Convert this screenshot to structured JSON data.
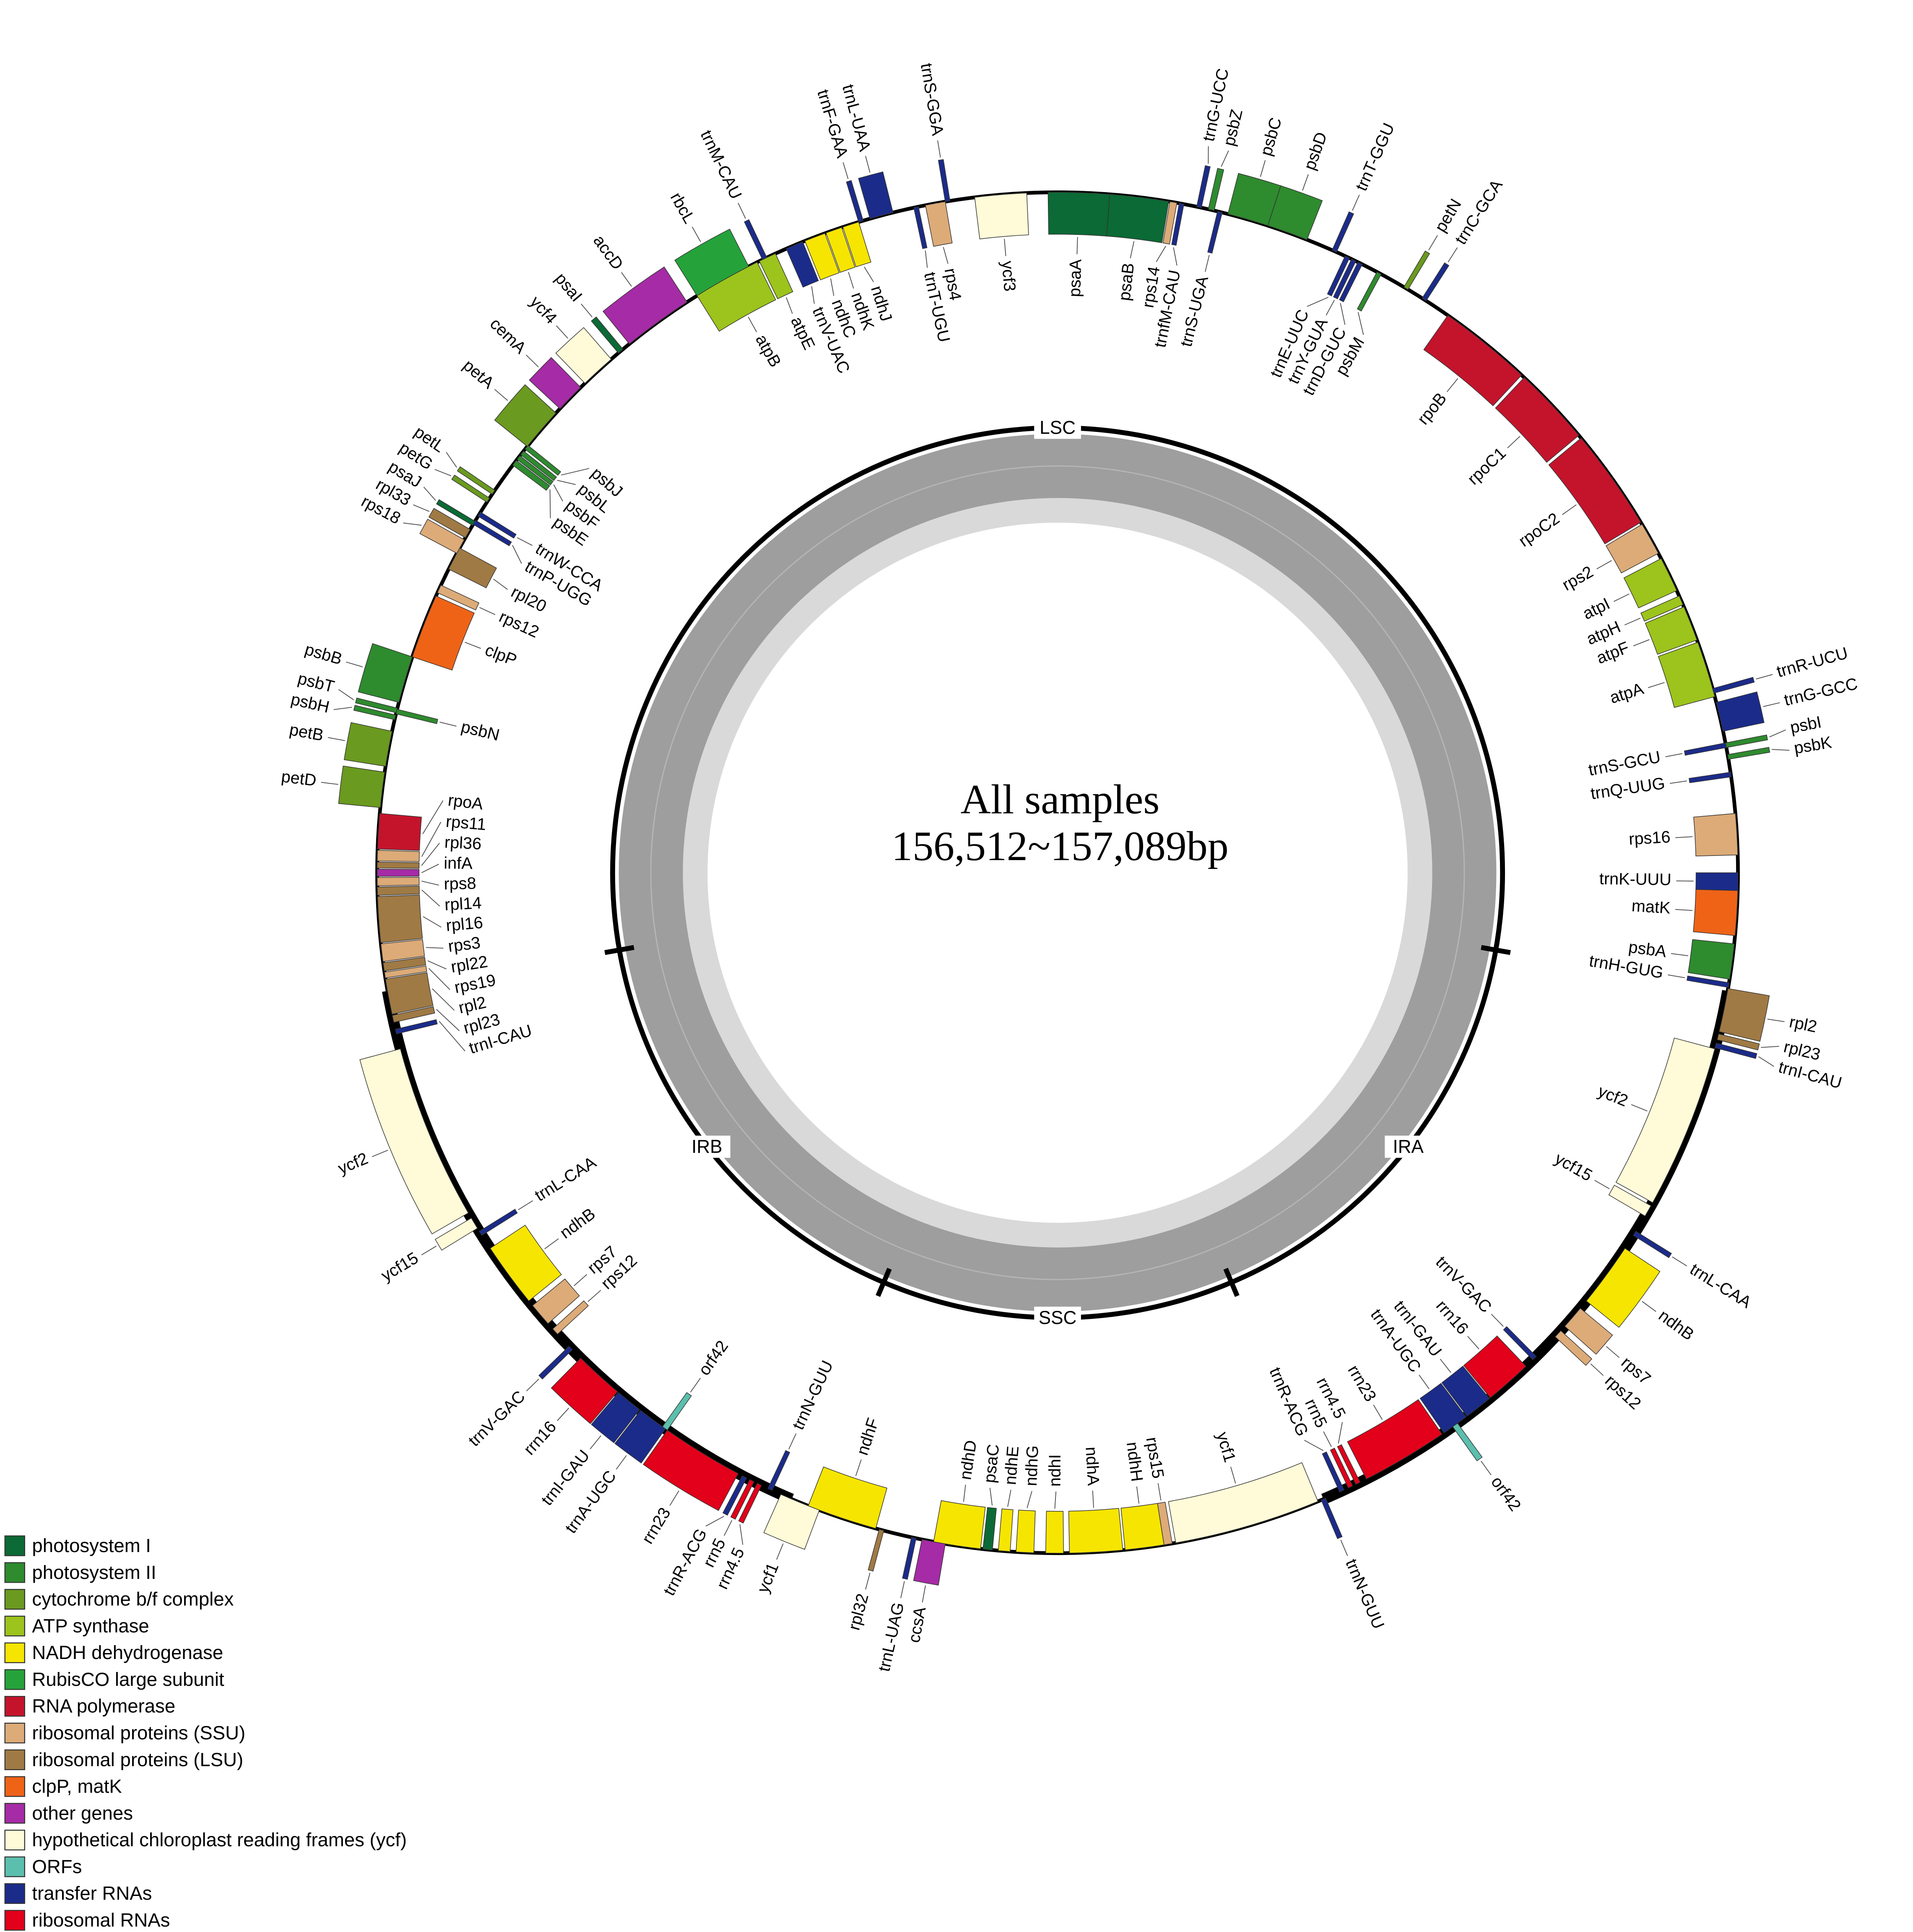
{
  "center_label": {
    "title": "All samples",
    "size": "156,512~157,089bp"
  },
  "regions": [
    "LSC",
    "IRA",
    "SSC",
    "IRB"
  ],
  "genes": [
    "ycf3",
    "psaA",
    "psaB",
    "rps14",
    "trnfM-CAU",
    "trnG-UCC",
    "psbZ",
    "trnS-UGA",
    "psbC",
    "psbD",
    "trnT-GGU",
    "trnE-UUC",
    "trnY-GUA",
    "trnD-GUC",
    "psbM",
    "petN",
    "trnC-GCA",
    "rpoB",
    "rpoC1",
    "rpoC2",
    "rps2",
    "atpI",
    "atpH",
    "atpF",
    "atpA",
    "trnR-UCU",
    "trnG-GCC",
    "psbI",
    "psbK",
    "trnS-GCU",
    "trnQ-UUG",
    "rps16",
    "trnK-UUU",
    "matK",
    "psbA",
    "trnH-GUG",
    "rpl2",
    "rpl23",
    "trnI-CAU",
    "ycf2",
    "ycf15",
    "trnL-CAA",
    "ndhB",
    "rps7",
    "rps12",
    "trnV-GAC",
    "rrn16",
    "trnI-GAU",
    "trnA-UGC",
    "orf42",
    "rrn23",
    "rrn4.5",
    "rrn5",
    "trnR-ACG",
    "trnN-GUU",
    "ycf1",
    "rps15",
    "ndhH",
    "ndhA",
    "ndhI",
    "ndhG",
    "ndhE",
    "psaC",
    "ndhD",
    "ccsA",
    "trnL-UAG",
    "rpl32",
    "ndhF",
    "ycf1",
    "trnN-GUU",
    "rrn4.5",
    "rrn5",
    "trnR-ACG",
    "rrn23",
    "trnA-UGC",
    "trnI-GAU",
    "orf42",
    "rrn16",
    "trnV-GAC",
    "rps12",
    "rps7",
    "ndhB",
    "trnL-CAA",
    "ycf15",
    "ycf2",
    "trnI-CAU",
    "rpl23",
    "rpl2",
    "rps19",
    "rpl22",
    "rps3",
    "rpl16",
    "rpl14",
    "rps8",
    "infA",
    "rpl36",
    "rps11",
    "rpoA",
    "petD",
    "petB",
    "psbH",
    "psbT",
    "psbN",
    "psbB",
    "clpP",
    "rps12",
    "rpl20",
    "rps18",
    "rpl33",
    "psaJ",
    "trnP-UGG",
    "trnW-CCA",
    "petG",
    "petL",
    "psbE",
    "psbF",
    "psbL",
    "psbJ",
    "petA",
    "cemA",
    "ycf4",
    "psaI",
    "accD",
    "rbcL",
    "atpB",
    "atpE",
    "trnM-CAU",
    "trnV-UAC",
    "ndhC",
    "ndhK",
    "ndhJ",
    "trnF-GAA",
    "trnL-UAA",
    "trnT-UGU",
    "rps4",
    "trnS-GGA"
  ],
  "legend": [
    {
      "label": "photosystem I",
      "color": "#0b6a35"
    },
    {
      "label": "photosystem II",
      "color": "#2e8b2e"
    },
    {
      "label": "cytochrome b/f complex",
      "color": "#6a9a1f"
    },
    {
      "label": "ATP synthase",
      "color": "#9cc41c"
    },
    {
      "label": "NADH dehydrogenase",
      "color": "#f6e500"
    },
    {
      "label": "RubisCO large subunit",
      "color": "#25a33a"
    },
    {
      "label": "RNA polymerase",
      "color": "#c4142c"
    },
    {
      "label": "ribosomal proteins (SSU)",
      "color": "#dcab78"
    },
    {
      "label": "ribosomal proteins (LSU)",
      "color": "#a07a44"
    },
    {
      "label": "clpP, matK",
      "color": "#ef6317"
    },
    {
      "label": "other genes",
      "color": "#a62ba6"
    },
    {
      "label": "hypothetical chloroplast reading frames (ycf)",
      "color": "#fffbd8"
    },
    {
      "label": "ORFs",
      "color": "#5cbfae"
    },
    {
      "label": "transfer RNAs",
      "color": "#1b2b8a"
    },
    {
      "label": "ribosomal RNAs",
      "color": "#e2001a"
    }
  ]
}
